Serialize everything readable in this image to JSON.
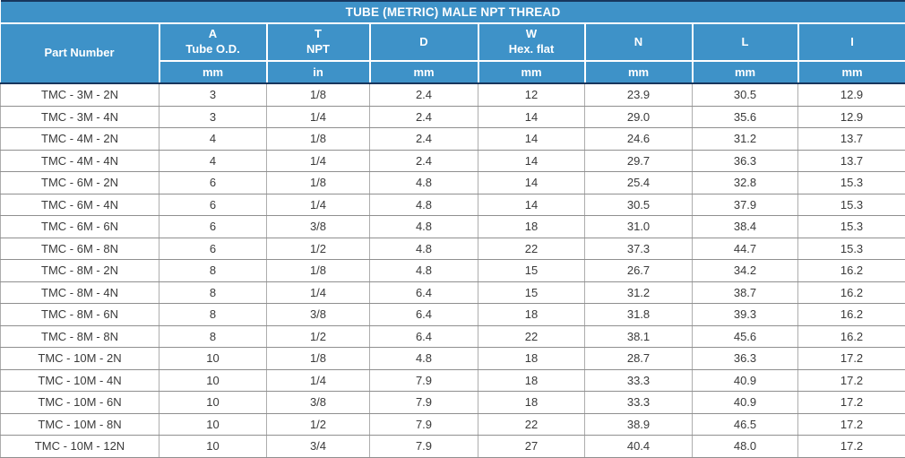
{
  "title": "TUBE (METRIC) MALE NPT THREAD",
  "colors": {
    "header_blue": "#3E92C8",
    "header_text": "#FFFFFF",
    "navy_border": "#17365D",
    "row_line": "#8F8F8F",
    "col_line": "#ADADAD",
    "body_text": "#3A3A3A",
    "background": "#FFFFFF"
  },
  "chart_data": {
    "type": "table",
    "title": "TUBE (METRIC) MALE NPT THREAD",
    "legend_position": "none",
    "grid": true,
    "columns": [
      {
        "id": "part-number",
        "label": "Part Number",
        "sublabel": "",
        "unit": ""
      },
      {
        "id": "a-tube-od",
        "label": "A",
        "sublabel": "Tube O.D.",
        "unit": "mm"
      },
      {
        "id": "t-npt",
        "label": "T",
        "sublabel": "NPT",
        "unit": "in"
      },
      {
        "id": "d",
        "label": "D",
        "sublabel": "",
        "unit": "mm"
      },
      {
        "id": "w-hex-flat",
        "label": "W",
        "sublabel": "Hex. flat",
        "unit": "mm"
      },
      {
        "id": "n",
        "label": "N",
        "sublabel": "",
        "unit": "mm"
      },
      {
        "id": "l",
        "label": "L",
        "sublabel": "",
        "unit": "mm"
      },
      {
        "id": "i",
        "label": "I",
        "sublabel": "",
        "unit": "mm"
      }
    ],
    "rows": [
      [
        "TMC - 3M - 2N",
        "3",
        "1/8",
        "2.4",
        "12",
        "23.9",
        "30.5",
        "12.9"
      ],
      [
        "TMC - 3M - 4N",
        "3",
        "1/4",
        "2.4",
        "14",
        "29.0",
        "35.6",
        "12.9"
      ],
      [
        "TMC - 4M - 2N",
        "4",
        "1/8",
        "2.4",
        "14",
        "24.6",
        "31.2",
        "13.7"
      ],
      [
        "TMC - 4M - 4N",
        "4",
        "1/4",
        "2.4",
        "14",
        "29.7",
        "36.3",
        "13.7"
      ],
      [
        "TMC - 6M - 2N",
        "6",
        "1/8",
        "4.8",
        "14",
        "25.4",
        "32.8",
        "15.3"
      ],
      [
        "TMC - 6M - 4N",
        "6",
        "1/4",
        "4.8",
        "14",
        "30.5",
        "37.9",
        "15.3"
      ],
      [
        "TMC - 6M - 6N",
        "6",
        "3/8",
        "4.8",
        "18",
        "31.0",
        "38.4",
        "15.3"
      ],
      [
        "TMC - 6M - 8N",
        "6",
        "1/2",
        "4.8",
        "22",
        "37.3",
        "44.7",
        "15.3"
      ],
      [
        "TMC - 8M - 2N",
        "8",
        "1/8",
        "4.8",
        "15",
        "26.7",
        "34.2",
        "16.2"
      ],
      [
        "TMC - 8M - 4N",
        "8",
        "1/4",
        "6.4",
        "15",
        "31.2",
        "38.7",
        "16.2"
      ],
      [
        "TMC - 8M - 6N",
        "8",
        "3/8",
        "6.4",
        "18",
        "31.8",
        "39.3",
        "16.2"
      ],
      [
        "TMC - 8M - 8N",
        "8",
        "1/2",
        "6.4",
        "22",
        "38.1",
        "45.6",
        "16.2"
      ],
      [
        "TMC - 10M - 2N",
        "10",
        "1/8",
        "4.8",
        "18",
        "28.7",
        "36.3",
        "17.2"
      ],
      [
        "TMC - 10M - 4N",
        "10",
        "1/4",
        "7.9",
        "18",
        "33.3",
        "40.9",
        "17.2"
      ],
      [
        "TMC - 10M - 6N",
        "10",
        "3/8",
        "7.9",
        "18",
        "33.3",
        "40.9",
        "17.2"
      ],
      [
        "TMC - 10M - 8N",
        "10",
        "1/2",
        "7.9",
        "22",
        "38.9",
        "46.5",
        "17.2"
      ],
      [
        "TMC - 10M - 12N",
        "10",
        "3/4",
        "7.9",
        "27",
        "40.4",
        "48.0",
        "17.2"
      ]
    ]
  }
}
